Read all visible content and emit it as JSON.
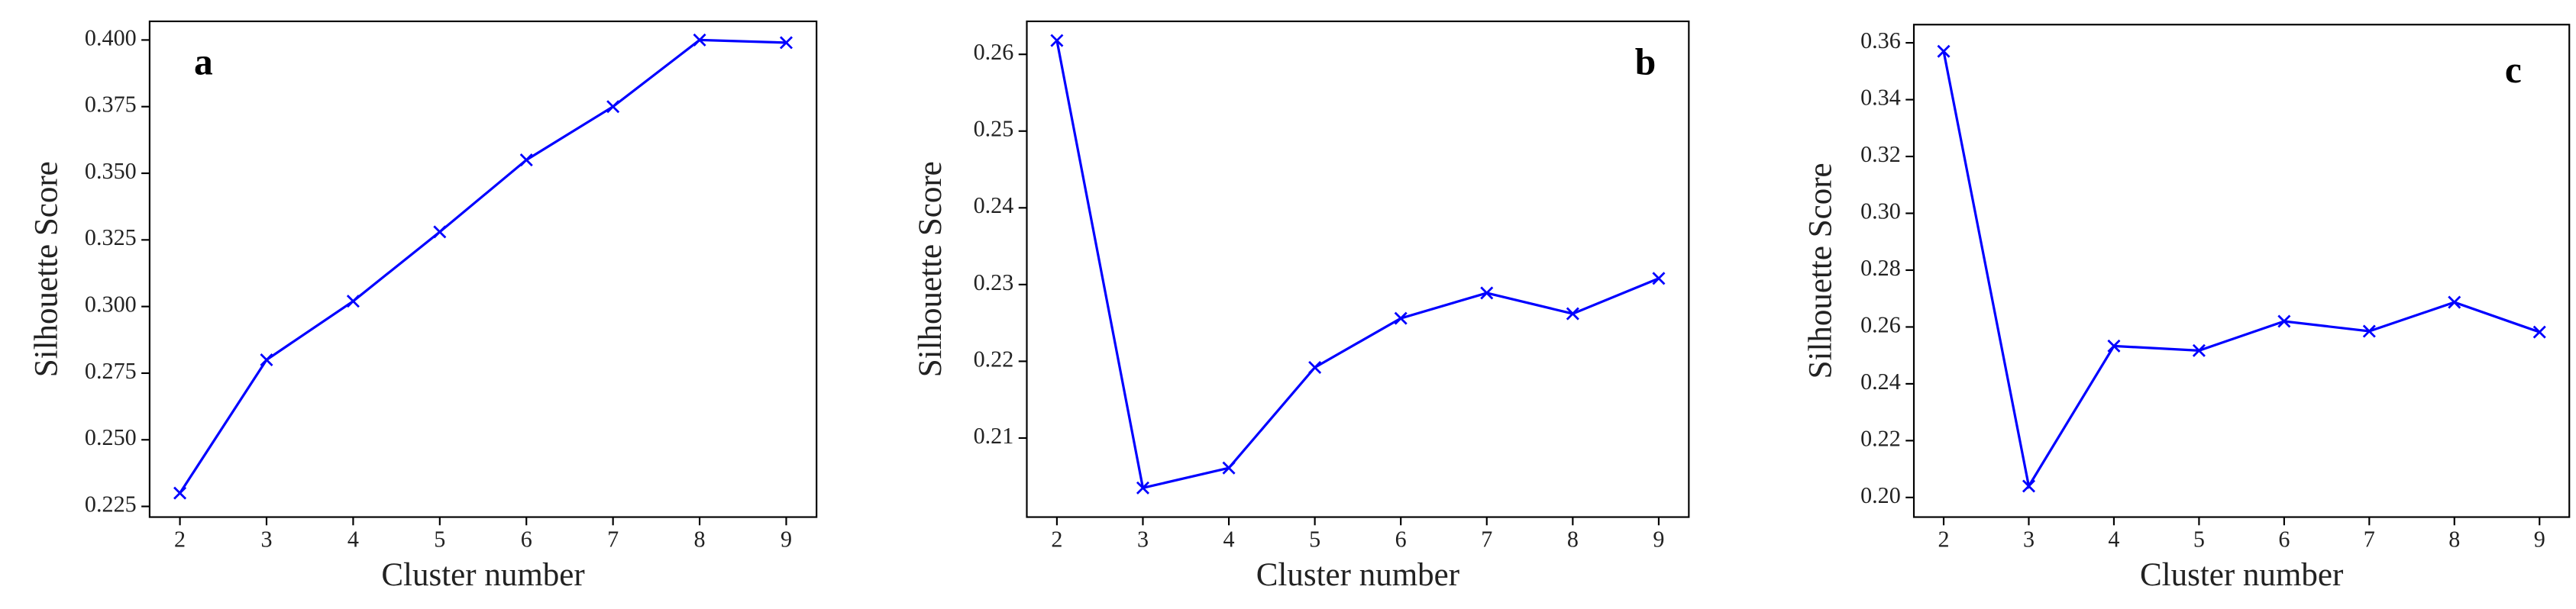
{
  "chart_data": [
    {
      "type": "line",
      "annotation": "a",
      "x_label": "Cluster number",
      "y_label": "Silhouette Score",
      "x": [
        2,
        3,
        4,
        5,
        6,
        7,
        8,
        9
      ],
      "values": [
        0.23,
        0.28,
        0.302,
        0.328,
        0.355,
        0.375,
        0.4,
        0.399
      ],
      "color": "#0000ff",
      "xlim": [
        1.65,
        9.35
      ],
      "xticks": [
        2,
        3,
        4,
        5,
        6,
        7,
        8,
        9
      ],
      "ylim": [
        0.221,
        0.407
      ],
      "yticks": [
        0.225,
        {
          "value": 0.25,
          "label": "0.250"
        },
        0.275,
        {
          "value": 0.3,
          "label": "0.300"
        },
        0.325,
        {
          "value": 0.35,
          "label": "0.350"
        },
        0.375,
        {
          "value": 0.4,
          "label": "0.400"
        }
      ]
    },
    {
      "type": "line",
      "annotation": "b",
      "x_label": "Cluster number",
      "y_label": "Silhouette Score",
      "x": [
        2,
        3,
        4,
        5,
        6,
        7,
        8,
        9
      ],
      "values": [
        0.2618,
        0.2035,
        0.2061,
        0.2192,
        0.2256,
        0.2289,
        0.2262,
        0.2308
      ],
      "color": "#0000ff",
      "xlim": [
        1.65,
        9.35
      ],
      "xticks": [
        2,
        3,
        4,
        5,
        6,
        7,
        8,
        9
      ],
      "ylim": [
        0.1997,
        0.2643
      ],
      "yticks": [
        0.21,
        0.22,
        0.23,
        0.24,
        0.25,
        0.26
      ]
    },
    {
      "type": "line",
      "annotation": "c",
      "x_label": "Cluster number",
      "y_label": "Silhouette Score",
      "x": [
        2,
        3,
        4,
        5,
        6,
        7,
        8,
        9
      ],
      "values": [
        0.357,
        0.204,
        0.2533,
        0.2517,
        0.262,
        0.2585,
        0.2687,
        0.2582
      ],
      "color": "#0000ff",
      "xlim": [
        1.65,
        9.35
      ],
      "xticks": [
        2,
        3,
        4,
        5,
        6,
        7,
        8,
        9
      ],
      "ylim": [
        0.1931,
        0.3664
      ],
      "yticks": [
        {
          "value": 0.2,
          "label": "0.20"
        },
        0.22,
        0.24,
        0.26,
        0.28,
        {
          "value": 0.3,
          "label": "0.30"
        },
        0.32,
        0.34,
        0.36
      ]
    }
  ]
}
